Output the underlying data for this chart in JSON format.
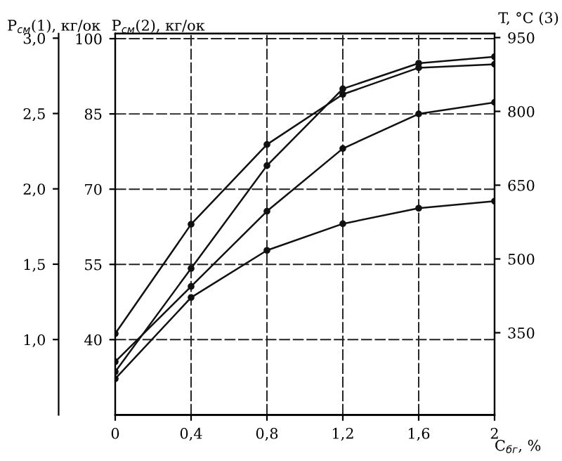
{
  "chart_data": {
    "type": "line",
    "x": [
      0,
      0.4,
      0.8,
      1.2,
      1.6,
      2
    ],
    "series": [
      {
        "color": "#111111",
        "values": [
          41.2,
          63.0,
          78.9,
          88.9,
          94.2,
          94.9
        ]
      },
      {
        "color": "#111111",
        "values": [
          33.6,
          54.2,
          74.7,
          90.0,
          95.1,
          96.4
        ]
      },
      {
        "color": "#111111",
        "values": [
          35.6,
          50.6,
          65.6,
          78.1,
          85.0,
          87.3
        ]
      },
      {
        "color": "#111111",
        "values": [
          32.2,
          48.4,
          57.8,
          63.1,
          66.2,
          67.6
        ]
      }
    ],
    "xlabel": "C$_{бг}$, %",
    "ylabel": "P$_{см}$(2), кг/ок",
    "y2label": "T, °C (3)",
    "y3label": "P$_{см}$(1), кг/ок",
    "xlim": [
      0,
      2
    ],
    "xticks": [
      0,
      {
        "value": 0.4,
        "label": "0,4"
      },
      {
        "value": 0.8,
        "label": "0,8"
      },
      {
        "value": 1.2,
        "label": "1,2"
      },
      {
        "value": 1.6,
        "label": "1,6"
      },
      2
    ],
    "ylim": [
      25,
      101
    ],
    "yticks": [
      40,
      55,
      70,
      85,
      100
    ],
    "y2lim": [
      183,
      958
    ],
    "y2ticks": [
      350,
      500,
      650,
      800,
      950
    ],
    "y3lim": [
      0.5,
      3.03
    ],
    "y3ticks": [
      {
        "value": 1.0,
        "label": "1,0"
      },
      {
        "value": 1.5,
        "label": "1,5"
      },
      {
        "value": 2.0,
        "label": "2,0"
      },
      {
        "value": 2.5,
        "label": "2,5"
      },
      {
        "value": 3.0,
        "label": "3,0"
      }
    ],
    "grid": true,
    "marker": "circle",
    "line_style": "solid",
    "legend": false
  }
}
